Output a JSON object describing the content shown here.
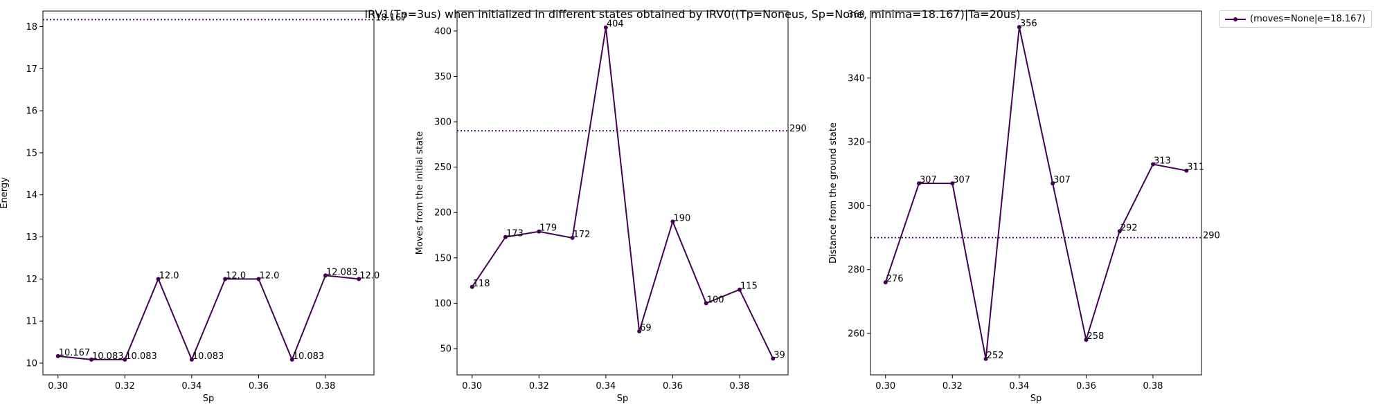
{
  "title": "IRV1(Tp=3us) when initialized in different states obtained by IRV0((Tp=Noneus, Sp=None, minima=18.167)|Ta=20us)",
  "colors": {
    "series": "#440154",
    "axis": "#000000"
  },
  "legend": {
    "label": "(moves=None|e=18.167)"
  },
  "chart_data": [
    {
      "type": "line",
      "xlabel": "Sp",
      "ylabel": "Energy",
      "x": [
        0.3,
        0.31,
        0.32,
        0.33,
        0.34,
        0.35,
        0.36,
        0.37,
        0.38,
        0.39
      ],
      "values": [
        10.167,
        10.083,
        10.083,
        12.0,
        10.083,
        12.0,
        12.0,
        10.083,
        12.083,
        12.0
      ],
      "point_labels": [
        "10.167",
        "10.083",
        "10.083",
        "12.0",
        "10.083",
        "12.0",
        "12.0",
        "10.083",
        "12.083",
        "12.0"
      ],
      "hline": {
        "value": 18.167,
        "label": "18.167"
      },
      "xlim": [
        0.2955,
        0.3945
      ],
      "ylim": [
        9.72,
        18.37
      ],
      "xticks": [
        "0.30",
        "0.32",
        "0.34",
        "0.36",
        "0.38"
      ],
      "xtick_values": [
        0.3,
        0.32,
        0.34,
        0.36,
        0.38
      ],
      "yticks": [
        "10",
        "11",
        "12",
        "13",
        "14",
        "15",
        "16",
        "17",
        "18"
      ],
      "ytick_values": [
        10,
        11,
        12,
        13,
        14,
        15,
        16,
        17,
        18
      ]
    },
    {
      "type": "line",
      "xlabel": "Sp",
      "ylabel": "Moves from the initial state",
      "x": [
        0.3,
        0.31,
        0.32,
        0.33,
        0.34,
        0.35,
        0.36,
        0.37,
        0.38,
        0.39
      ],
      "values": [
        118,
        173,
        179,
        172,
        404,
        69,
        190,
        100,
        115,
        39
      ],
      "point_labels": [
        "118",
        "173",
        "179",
        "172",
        "404",
        "69",
        "190",
        "100",
        "115",
        "39"
      ],
      "hline": {
        "value": 290,
        "label": "290"
      },
      "xlim": [
        0.2955,
        0.3945
      ],
      "ylim": [
        21,
        422
      ],
      "xticks": [
        "0.30",
        "0.32",
        "0.34",
        "0.36",
        "0.38"
      ],
      "xtick_values": [
        0.3,
        0.32,
        0.34,
        0.36,
        0.38
      ],
      "yticks": [
        "50",
        "100",
        "150",
        "200",
        "250",
        "300",
        "350",
        "400"
      ],
      "ytick_values": [
        50,
        100,
        150,
        200,
        250,
        300,
        350,
        400
      ]
    },
    {
      "type": "line",
      "xlabel": "Sp",
      "ylabel": "Distance from the ground state",
      "x": [
        0.3,
        0.31,
        0.32,
        0.33,
        0.34,
        0.35,
        0.36,
        0.37,
        0.38,
        0.39
      ],
      "values": [
        276,
        307,
        307,
        252,
        356,
        307,
        258,
        292,
        313,
        311
      ],
      "point_labels": [
        "276",
        "307",
        "307",
        "252",
        "356",
        "307",
        "258",
        "292",
        "313",
        "311"
      ],
      "hline": {
        "value": 290,
        "label": "290"
      },
      "xlim": [
        0.2955,
        0.3945
      ],
      "ylim": [
        247,
        361
      ],
      "xticks": [
        "0.30",
        "0.32",
        "0.34",
        "0.36",
        "0.38"
      ],
      "xtick_values": [
        0.3,
        0.32,
        0.34,
        0.36,
        0.38
      ],
      "yticks": [
        "260",
        "280",
        "300",
        "320",
        "340"
      ],
      "ytick_values": [
        260,
        280,
        300,
        320,
        340
      ],
      "top_tick_label": "360"
    }
  ]
}
